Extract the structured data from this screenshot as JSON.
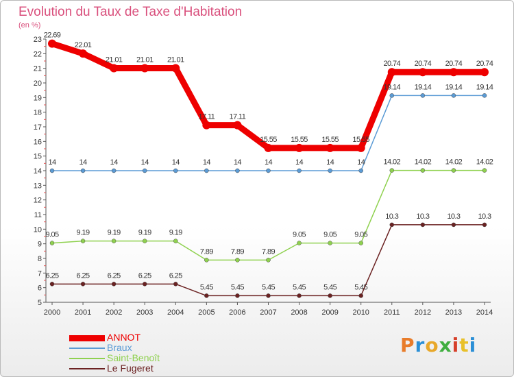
{
  "title": "Evolution du Taux de Taxe d'Habitation",
  "subtitle": "(en %)",
  "logo_text": "Proxiti",
  "chart_data": {
    "type": "line",
    "title": "Evolution du Taux de Taxe d'Habitation",
    "ylabel": "(en %)",
    "xlabel": "",
    "categories": [
      "2000",
      "2001",
      "2002",
      "2003",
      "2004",
      "2005",
      "2006",
      "2007",
      "2008",
      "2009",
      "2010",
      "2011",
      "2012",
      "2013",
      "2014"
    ],
    "ylim": [
      5,
      23
    ],
    "yticks": [
      5,
      6,
      7,
      8,
      9,
      10,
      11,
      12,
      13,
      14,
      15,
      16,
      17,
      18,
      19,
      20,
      21,
      22,
      23
    ],
    "grid": false,
    "legend_position": "bottom-left",
    "series": [
      {
        "name": "ANNOT",
        "color": "#ee0000",
        "values": [
          22.69,
          22.01,
          21.01,
          21.01,
          21.01,
          17.11,
          17.11,
          15.55,
          15.55,
          15.55,
          15.55,
          20.74,
          20.74,
          20.74,
          20.74
        ],
        "labels": [
          "22.69",
          "22.01",
          "21.01",
          "21.01",
          "21.01",
          "17.11",
          "17.11",
          "15.55",
          "15.55",
          "15.55",
          "15.55",
          "20.74",
          "20.74",
          "20.74",
          "20.74"
        ]
      },
      {
        "name": "Braux",
        "color": "#5b9bd5",
        "values": [
          14,
          14,
          14,
          14,
          14,
          14,
          14,
          14,
          14,
          14,
          14,
          19.14,
          19.14,
          19.14,
          19.14
        ],
        "labels": [
          "14",
          "14",
          "14",
          "14",
          "14",
          "14",
          "14",
          "14",
          "14",
          "14",
          "14",
          "19.14",
          "19.14",
          "19.14",
          "19.14"
        ]
      },
      {
        "name": "Saint-Benoît",
        "color": "#8fd14f",
        "values": [
          9.05,
          9.19,
          9.19,
          9.19,
          9.19,
          7.89,
          7.89,
          7.89,
          9.05,
          9.05,
          9.05,
          14.02,
          14.02,
          14.02,
          14.02
        ],
        "labels": [
          "9.05",
          "9.19",
          "9.19",
          "9.19",
          "9.19",
          "7.89",
          "7.89",
          "7.89",
          "9.05",
          "9.05",
          "9.05",
          "14.02",
          "14.02",
          "14.02",
          "14.02"
        ]
      },
      {
        "name": "Le Fugeret",
        "color": "#6b2222",
        "values": [
          6.25,
          6.25,
          6.25,
          6.25,
          6.25,
          5.45,
          5.45,
          5.45,
          5.45,
          5.45,
          5.45,
          10.3,
          10.3,
          10.3,
          10.3
        ],
        "labels": [
          "6.25",
          "6.25",
          "6.25",
          "6.25",
          "6.25",
          "5.45",
          "5.45",
          "5.45",
          "5.45",
          "5.45",
          "5.45",
          "10.3",
          "10.3",
          "10.3",
          "10.3"
        ]
      }
    ]
  }
}
